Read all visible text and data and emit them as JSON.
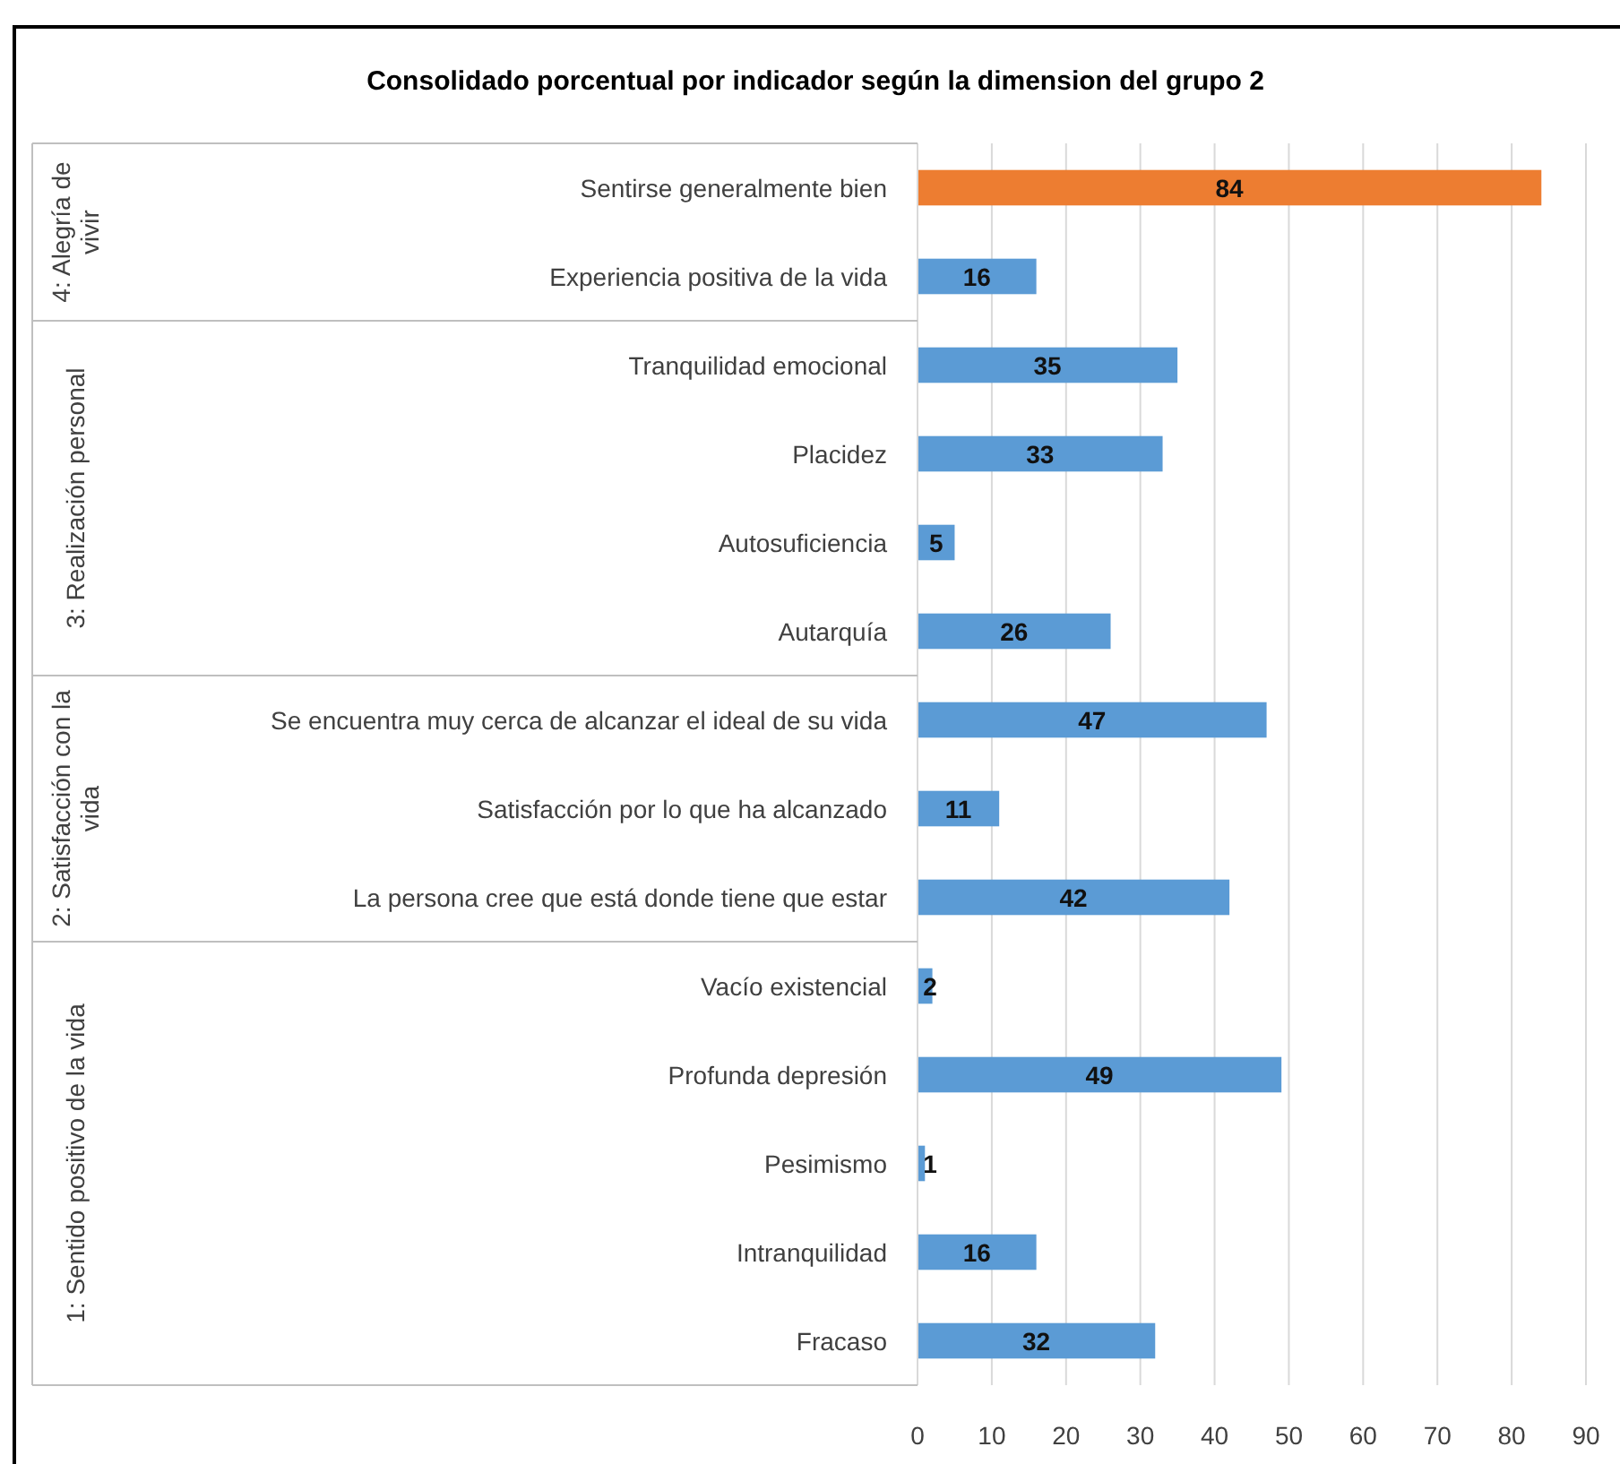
{
  "chart_data": {
    "type": "bar",
    "orientation": "horizontal",
    "title": "Consolidado porcentual por indicador según la dimension del grupo 2",
    "categories": [
      "Sentirse generalmente bien",
      "Experiencia positiva de la vida",
      "Tranquilidad emocional",
      "Placidez",
      "Autosuficiencia",
      "Autarquía",
      "Se encuentra muy cerca de alcanzar el ideal de su vida",
      "Satisfacción por lo que ha alcanzado",
      "La persona cree que está donde tiene que estar",
      "Vacío existencial",
      "Profunda depresión",
      "Pesimismo",
      "Intranquilidad",
      "Fracaso"
    ],
    "values": [
      84,
      16,
      35,
      33,
      5,
      26,
      47,
      11,
      42,
      2,
      49,
      1,
      16,
      32
    ],
    "colors": [
      "#ed7d31",
      "#5b9bd5",
      "#5b9bd5",
      "#5b9bd5",
      "#5b9bd5",
      "#5b9bd5",
      "#5b9bd5",
      "#5b9bd5",
      "#5b9bd5",
      "#5b9bd5",
      "#5b9bd5",
      "#5b9bd5",
      "#5b9bd5",
      "#5b9bd5"
    ],
    "xlim": [
      0,
      90
    ],
    "xticks": [
      0,
      10,
      20,
      30,
      40,
      50,
      60,
      70,
      80,
      90
    ],
    "grid": "x",
    "data_labels": true,
    "annotations": [
      "4: Alegría de vivir",
      "3: Realización personal",
      "2: Satisfacción con la vida",
      "1: Sentido positivo de la vida"
    ]
  }
}
